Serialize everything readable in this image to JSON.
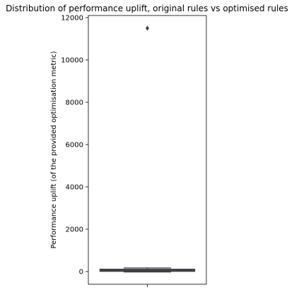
{
  "chart_data": {
    "type": "box",
    "title": "Distribution of performance uplift, original rules vs optimised rules",
    "xlabel": "",
    "ylabel": "Performance uplift (of the provided optimisation metric)",
    "ylim": [
      -600,
      12100
    ],
    "yticks": [
      0,
      2000,
      4000,
      6000,
      8000,
      10000,
      12000
    ],
    "categories": [
      ""
    ],
    "box": {
      "q1": 10,
      "median": 60,
      "q3": 110,
      "whisker_low": -20,
      "whisker_high": 170,
      "outliers": [
        11500
      ]
    },
    "grid": false,
    "colors": {
      "box_fill": "#3f6b91",
      "box_edge": "#3d3d3d",
      "outlier": "#3d3d3d"
    }
  }
}
